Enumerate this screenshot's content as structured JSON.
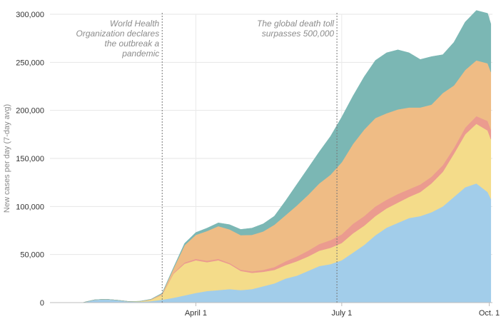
{
  "chart_data": {
    "type": "area",
    "stacked": true,
    "ylabel": "New cases per day (7-day avg)",
    "ylim": [
      0,
      300000
    ],
    "y_ticks": [
      0,
      50000,
      100000,
      150000,
      200000,
      250000,
      300000
    ],
    "y_tick_labels": [
      "0",
      "50,000",
      "100,000",
      "150,000",
      "200,000",
      "250,000",
      "300,000"
    ],
    "x_start": "2020-01-01",
    "x_end": "2020-10-03",
    "x_ticks": [
      {
        "date": "2020-04-01",
        "label": "April 1"
      },
      {
        "date": "2020-07-01",
        "label": "July 1"
      },
      {
        "date": "2020-10-01",
        "label": "Oct. 1"
      }
    ],
    "grid": true,
    "legend": "none",
    "annotations": [
      {
        "date": "2020-03-11",
        "text": [
          "World Health",
          "Organization declares",
          "the outbreak a",
          "pandemic"
        ]
      },
      {
        "date": "2020-06-28",
        "text": [
          "The global death toll",
          "surpasses 500,000"
        ]
      }
    ],
    "dates": [
      "2020-01-22",
      "2020-01-29",
      "2020-02-05",
      "2020-02-12",
      "2020-02-19",
      "2020-02-26",
      "2020-03-04",
      "2020-03-11",
      "2020-03-18",
      "2020-03-25",
      "2020-04-01",
      "2020-04-08",
      "2020-04-15",
      "2020-04-22",
      "2020-04-29",
      "2020-05-06",
      "2020-05-13",
      "2020-05-20",
      "2020-05-27",
      "2020-06-03",
      "2020-06-10",
      "2020-06-17",
      "2020-06-24",
      "2020-07-01",
      "2020-07-08",
      "2020-07-15",
      "2020-07-22",
      "2020-07-29",
      "2020-08-05",
      "2020-08-12",
      "2020-08-19",
      "2020-08-26",
      "2020-09-02",
      "2020-09-09",
      "2020-09-16",
      "2020-09-23",
      "2020-09-30",
      "2020-10-02"
    ],
    "series": [
      {
        "color": "#a2cdea",
        "values": [
          300,
          3000,
          3500,
          2500,
          1000,
          800,
          1500,
          3000,
          5000,
          7500,
          10000,
          12000,
          13000,
          14000,
          13000,
          14000,
          17000,
          20000,
          25000,
          28000,
          33000,
          38000,
          40000,
          44000,
          52000,
          60000,
          70000,
          78000,
          83000,
          88000,
          90000,
          94000,
          100000,
          110000,
          120000,
          124000,
          115000,
          108000
        ]
      },
      {
        "color": "#f4dc8a",
        "values": [
          0,
          0,
          0,
          0,
          200,
          500,
          1500,
          5000,
          25000,
          33000,
          34000,
          30000,
          31000,
          26000,
          20000,
          17000,
          15000,
          14000,
          14000,
          15000,
          15000,
          16000,
          17000,
          18000,
          20000,
          20000,
          20000,
          20000,
          21000,
          22000,
          25000,
          30000,
          36000,
          45000,
          55000,
          62000,
          64000,
          62000
        ]
      },
      {
        "color": "#eb9b8f",
        "values": [
          0,
          0,
          0,
          0,
          0,
          0,
          100,
          300,
          800,
          1200,
          1500,
          1500,
          1500,
          1200,
          1200,
          1500,
          2000,
          3000,
          4000,
          5000,
          6000,
          7000,
          8000,
          9000,
          10000,
          10000,
          10000,
          9000,
          9000,
          8000,
          8000,
          7000,
          7000,
          6000,
          7000,
          8000,
          10000,
          10000
        ]
      },
      {
        "color": "#efbc85",
        "values": [
          0,
          0,
          0,
          0,
          0,
          0,
          300,
          1000,
          4500,
          18000,
          25000,
          31000,
          34000,
          35000,
          36000,
          38000,
          40000,
          44000,
          48000,
          53000,
          58000,
          63000,
          68000,
          75000,
          83000,
          90000,
          92000,
          90000,
          88000,
          85000,
          80000,
          75000,
          75000,
          65000,
          60000,
          58000,
          60000,
          60000
        ]
      },
      {
        "color": "#7bb7b4",
        "values": [
          0,
          0,
          0,
          0,
          0,
          100,
          200,
          600,
          1000,
          2000,
          2500,
          3000,
          3500,
          5000,
          6000,
          7000,
          8000,
          9000,
          15000,
          22000,
          28000,
          33000,
          40000,
          47000,
          50000,
          55000,
          60000,
          63000,
          62000,
          57000,
          50000,
          50000,
          40000,
          45000,
          50000,
          52000,
          52000,
          50000
        ]
      }
    ]
  }
}
